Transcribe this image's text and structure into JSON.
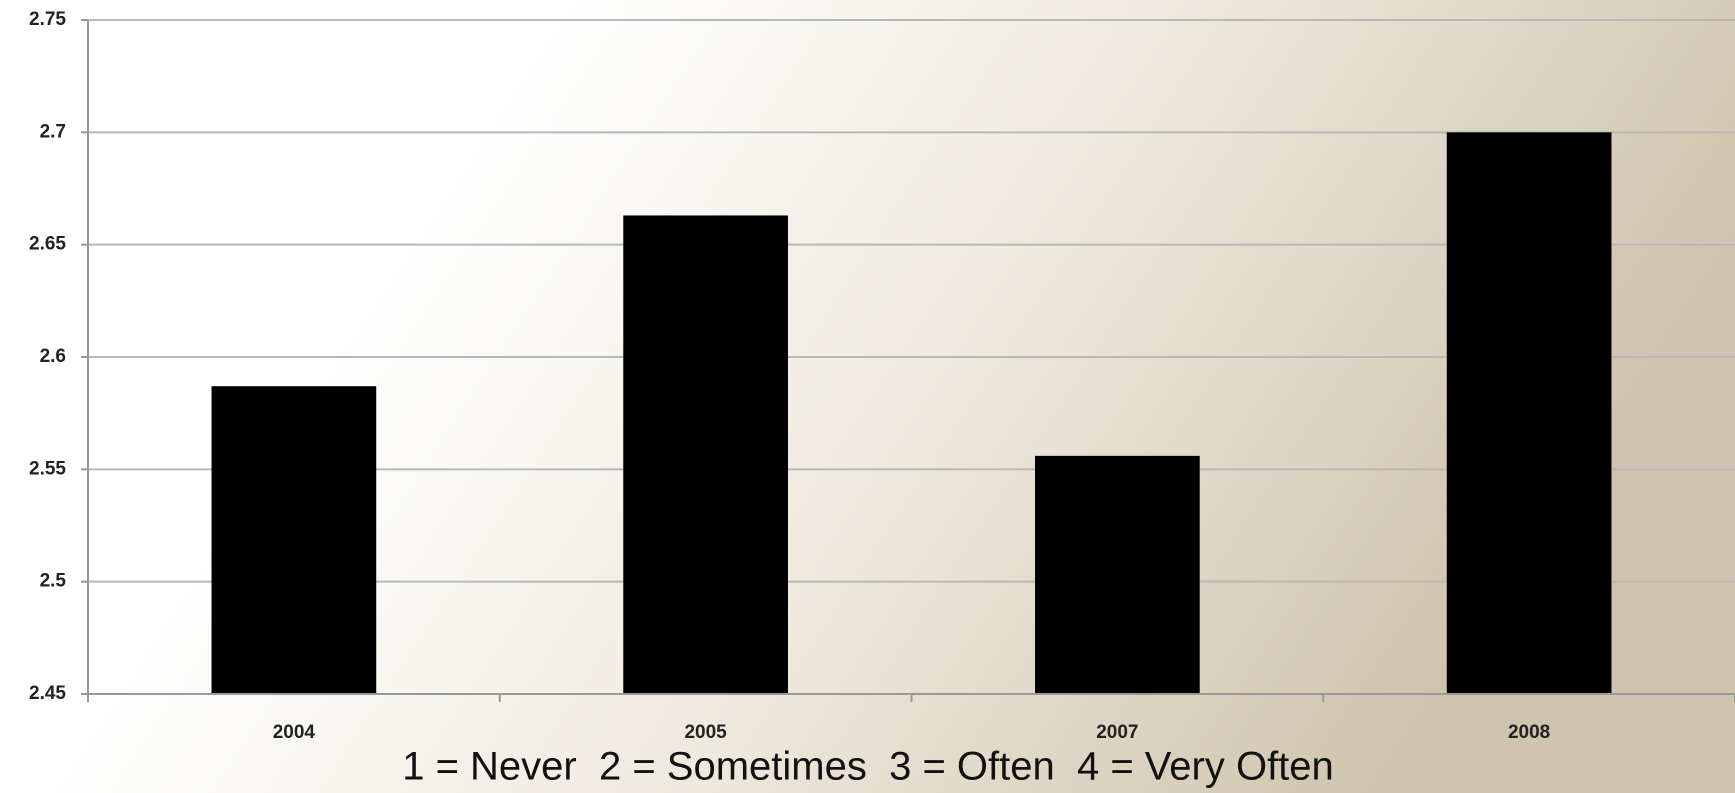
{
  "chart_data": {
    "type": "bar",
    "categories": [
      "2004",
      "2005",
      "2007",
      "2008"
    ],
    "values": [
      2.587,
      2.663,
      2.556,
      2.7
    ],
    "color": "#000000",
    "ylim": [
      2.45,
      2.75
    ],
    "yticks": [
      2.45,
      2.5,
      2.55,
      2.6,
      2.65,
      2.7,
      2.75
    ],
    "grid": true,
    "annotation": "1 = Never  2 = Sometimes  3 = Often  4 = Very Often"
  }
}
